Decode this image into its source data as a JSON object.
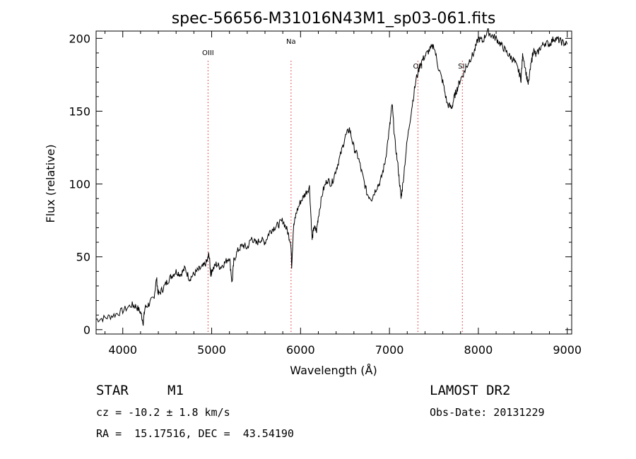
{
  "chart_data": {
    "type": "line",
    "title": "spec-56656-M31016N43M1_sp03-061.fits",
    "xlabel": "Wavelength (Å)",
    "ylabel": "Flux (relative)",
    "xlim": [
      3700,
      9050
    ],
    "ylim": [
      -3,
      205
    ],
    "xticks": [
      4000,
      5000,
      6000,
      7000,
      8000,
      9000
    ],
    "yticks": [
      0,
      50,
      100,
      150,
      200
    ],
    "grid": false,
    "series": [
      {
        "x": [
          3700,
          3800,
          3900,
          4000,
          4100,
          4150,
          4200,
          4230,
          4250,
          4300,
          4350,
          4380,
          4400,
          4450,
          4500,
          4550,
          4600,
          4650,
          4700,
          4750,
          4800,
          4850,
          4900,
          4950,
          4970,
          4990,
          5000,
          5050,
          5100,
          5150,
          5200,
          5230,
          5250,
          5300,
          5350,
          5400,
          5450,
          5500,
          5550,
          5600,
          5650,
          5700,
          5750,
          5800,
          5850,
          5890,
          5900,
          5920,
          5950,
          6000,
          6050,
          6100,
          6130,
          6150,
          6180,
          6200,
          6250,
          6300,
          6350,
          6400,
          6450,
          6500,
          6550,
          6600,
          6650,
          6700,
          6750,
          6800,
          6850,
          6900,
          6950,
          7000,
          7030,
          7060,
          7100,
          7130,
          7150,
          7200,
          7250,
          7300,
          7350,
          7400,
          7450,
          7500,
          7550,
          7600,
          7650,
          7700,
          7730,
          7760,
          7800,
          7850,
          7900,
          7950,
          8000,
          8050,
          8100,
          8150,
          8200,
          8250,
          8300,
          8350,
          8400,
          8450,
          8480,
          8500,
          8540,
          8560,
          8600,
          8620,
          8650,
          8700,
          8750,
          8800,
          8850,
          8900,
          8950,
          9000
        ],
        "y": [
          7,
          8,
          10,
          13,
          17,
          16,
          12,
          5,
          15,
          18,
          22,
          35,
          24,
          28,
          33,
          37,
          40,
          38,
          42,
          35,
          38,
          41,
          43,
          47,
          52,
          38,
          40,
          45,
          43,
          46,
          50,
          32,
          48,
          55,
          58,
          56,
          63,
          59,
          62,
          60,
          67,
          70,
          72,
          75,
          68,
          60,
          44,
          70,
          80,
          88,
          93,
          98,
          62,
          70,
          68,
          78,
          95,
          103,
          100,
          110,
          120,
          132,
          138,
          125,
          118,
          105,
          93,
          90,
          97,
          102,
          115,
          138,
          155,
          130,
          110,
          90,
          100,
          130,
          152,
          172,
          183,
          188,
          192,
          195,
          180,
          170,
          155,
          152,
          160,
          165,
          172,
          178,
          185,
          190,
          200,
          198,
          205,
          202,
          200,
          196,
          192,
          188,
          185,
          178,
          172,
          190,
          175,
          168,
          185,
          192,
          188,
          194,
          197,
          196,
          200,
          199,
          197,
          196
        ]
      }
    ],
    "lines": [
      {
        "label": "OIII",
        "x": 4959
      },
      {
        "label": "Na",
        "x": 5893
      },
      {
        "label": "OII",
        "x": 7320
      },
      {
        "label": "SII",
        "x": 7820
      }
    ]
  },
  "info": {
    "class_label": "STAR",
    "subclass": "M1",
    "survey": "LAMOST DR2",
    "cz": "cz = -10.2 ± 1.8 km/s",
    "obs_date": "Obs-Date: 20131229",
    "coords": "RA =  15.17516, DEC =  43.54190"
  }
}
